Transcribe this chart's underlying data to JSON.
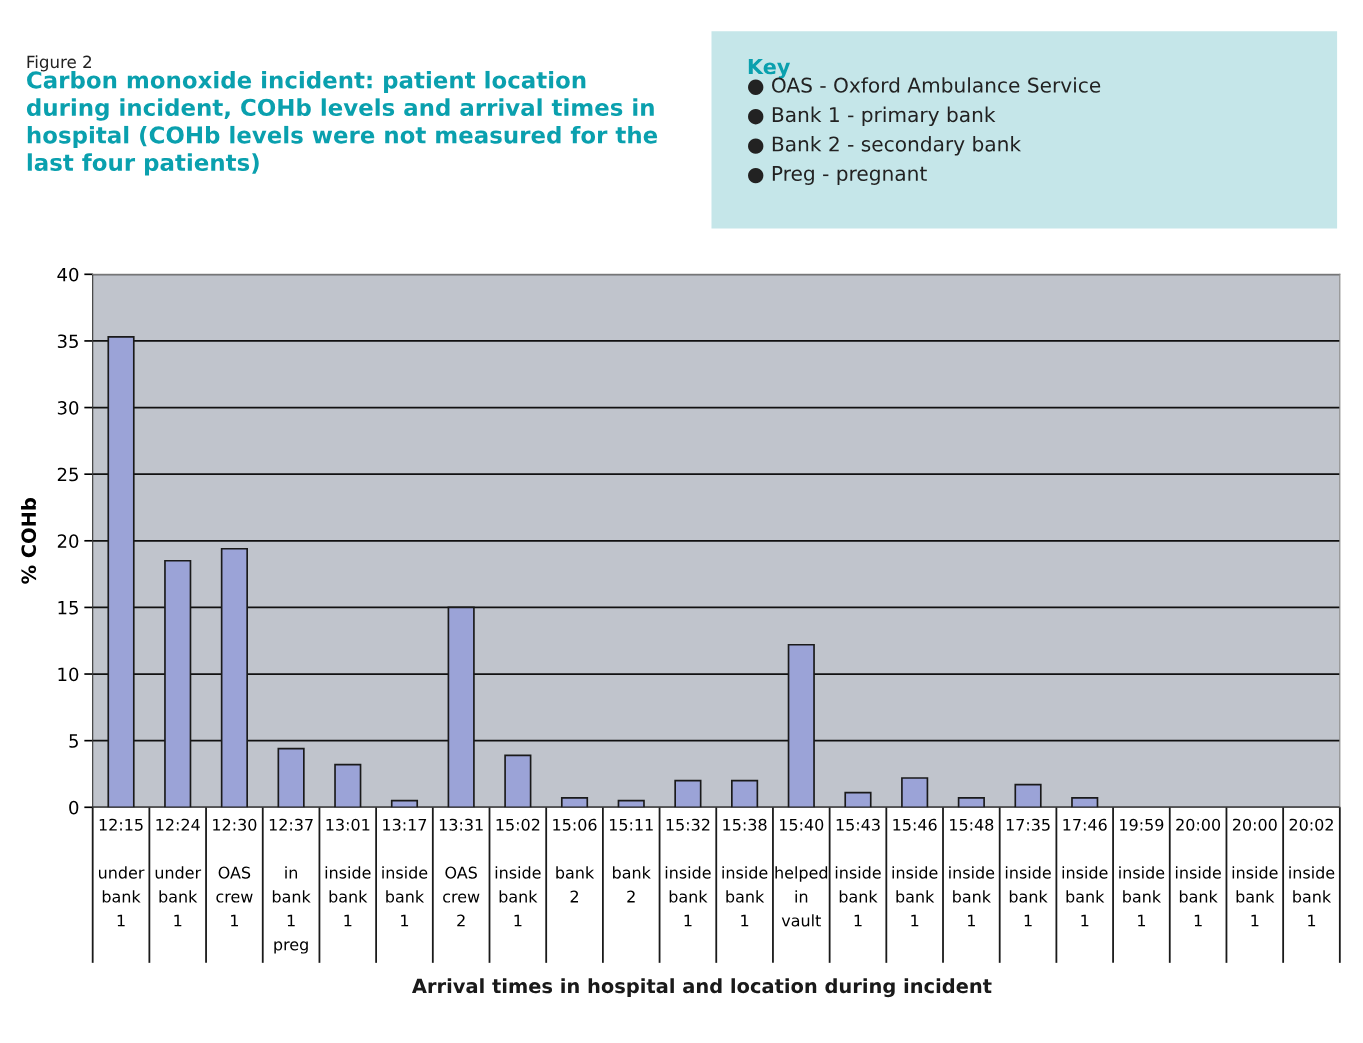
{
  "chart_data": {
    "type": "bar",
    "title": "Carbon monoxide incident: patient location\nduring incident, COHb levels and arrival times in\nhospital (COHb levels were not measured for the\nlast four patients)",
    "ylabel": "% COHb",
    "categories": [
      "12:15\n\nunder\nbank\n1",
      "12:24\n\nunder\nbank\n1",
      "12:30\n\nOAS\ncrew\n1",
      "12:37\n\nin\nbank\n1\npreg",
      "13:01\n\ninside\nbank\n1",
      "13:17\n\ninside\nbank\n1",
      "13:31\n\nOAS\ncrew\n2",
      "15:02\n\ninside\nbank\n1",
      "15:06\n\nbank\n2",
      "15:11\n\nbank\n2",
      "15:32\n\ninside\nbank\n1",
      "15:38\n\ninside\nbank\n1",
      "15:40\n\nhelped\nin\nvault",
      "15:43\n\ninside\nbank\n1",
      "15:46\n\ninside\nbank\n1",
      "15:48\n\ninside\nbank\n1",
      "17:35\n\ninside\nbank\n1",
      "17:46\n\ninside\nbank\n1",
      "19:59\n\ninside\nbank\n1",
      "20:00\n\ninside\nbank\n1",
      "20:00\n\ninside\nbank\n1",
      "20:02\n\ninside\nbank\n1"
    ],
    "values": [
      35.3,
      18.5,
      19.4,
      4.4,
      3.2,
      0.5,
      15.0,
      3.9,
      0.7,
      0.5,
      2.0,
      2.0,
      12.2,
      1.1,
      2.2,
      0.7,
      1.7,
      0.7,
      null,
      null,
      null,
      null
    ],
    "color": "#9ba3d7",
    "ylim": [
      0,
      40
    ],
    "yticks": [
      0,
      5,
      10,
      15,
      20,
      25,
      30,
      35,
      40
    ],
    "grid": "y",
    "legend": false,
    "annotations": [
      "Figure 2",
      "Key",
      "● OAS - Oxford Ambulance Service\n● Bank 1 - primary bank\n● Bank 2 - secondary bank\n● Preg - pregnant",
      "Arrival times in hospital and location during incident"
    ]
  }
}
